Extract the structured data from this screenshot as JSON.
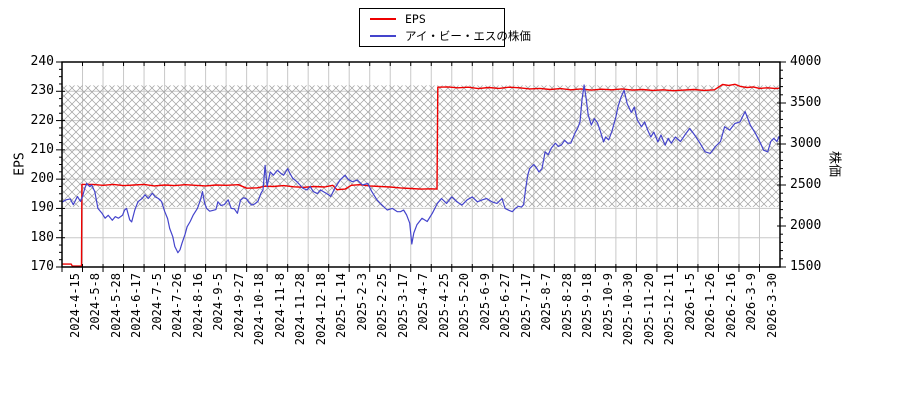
{
  "legend": {
    "entries": [
      {
        "label": "EPS",
        "color": "#ee0000"
      },
      {
        "label": "アイ・ビー・エスの株価",
        "color": "#4444cc"
      }
    ]
  },
  "chart_data": {
    "type": "line",
    "title": "",
    "grid": true,
    "legend_position": "top-center",
    "background_hatch_band": {
      "axis": "left",
      "from": 190.5,
      "to": 232,
      "style": "diagonal-crosshatch",
      "color": "#a0a0a0"
    },
    "grid_color": "#c8c8c8",
    "x_tick_labels": [
      "2024-4-15",
      "2024-5-8",
      "2024-5-28",
      "2024-6-17",
      "2024-7-5",
      "2024-7-26",
      "2024-8-16",
      "2024-9-5",
      "2024-9-27",
      "2024-10-18",
      "2024-11-8",
      "2024-11-28",
      "2024-12-18",
      "2025-1-14",
      "2025-2-3",
      "2025-2-25",
      "2025-3-17",
      "2025-4-7",
      "2025-4-25",
      "2025-5-20",
      "2025-6-9",
      "2025-6-27",
      "2025-7-17",
      "2025-8-7",
      "2025-8-28",
      "2025-9-18",
      "2025-10-9",
      "2025-10-30",
      "2025-11-20",
      "2025-12-11",
      "2026-1-5",
      "2026-1-26",
      "2026-2-16",
      "2026-3-9",
      "2026-3-30"
    ],
    "left_axis": {
      "label": "EPS",
      "min": 170,
      "max": 240,
      "tick_interval": 10,
      "minor_tick_interval": 2.5,
      "tick_labels": [
        "170",
        "180",
        "190",
        "200",
        "210",
        "220",
        "230",
        "240"
      ]
    },
    "right_axis": {
      "label": "株価",
      "min": 1500,
      "max": 4000,
      "tick_interval": 500,
      "minor_tick_interval": 100,
      "tick_labels": [
        "1500",
        "2000",
        "2500",
        "3000",
        "3500",
        "4000"
      ]
    },
    "series": [
      {
        "name": "EPS",
        "axis": "left",
        "color": "#ee0000",
        "width": 1.4,
        "points": [
          [
            0,
            171
          ],
          [
            0.45,
            171
          ],
          [
            0.5,
            170.3
          ],
          [
            0.95,
            170.3
          ],
          [
            0.97,
            198.2
          ],
          [
            1.5,
            198.2
          ],
          [
            2,
            197.9
          ],
          [
            2.5,
            198.2
          ],
          [
            3,
            197.8
          ],
          [
            3.5,
            198
          ],
          [
            4,
            198.2
          ],
          [
            4.5,
            197.7
          ],
          [
            5,
            198
          ],
          [
            5.5,
            197.8
          ],
          [
            6,
            198.1
          ],
          [
            6.5,
            197.9
          ],
          [
            7,
            197.7
          ],
          [
            7.5,
            198
          ],
          [
            8,
            197.9
          ],
          [
            8.6,
            198.1
          ],
          [
            9,
            196.9
          ],
          [
            9.5,
            197
          ],
          [
            9.9,
            197.6
          ],
          [
            10.3,
            197.5
          ],
          [
            10.8,
            197.8
          ],
          [
            11.3,
            197.4
          ],
          [
            11.8,
            197.2
          ],
          [
            12.3,
            197.5
          ],
          [
            12.8,
            197.3
          ],
          [
            13.2,
            197.9
          ],
          [
            13.4,
            196.4
          ],
          [
            13.8,
            196.6
          ],
          [
            14.1,
            197.9
          ],
          [
            14.5,
            198.1
          ],
          [
            15,
            197.7
          ],
          [
            15.5,
            197.5
          ],
          [
            16,
            197.3
          ],
          [
            16.5,
            197
          ],
          [
            17,
            196.8
          ],
          [
            17.5,
            196.6
          ],
          [
            18,
            196.7
          ],
          [
            18.28,
            196.6
          ],
          [
            18.32,
            231.4
          ],
          [
            18.8,
            231.5
          ],
          [
            19.3,
            231.2
          ],
          [
            19.8,
            231.4
          ],
          [
            20.3,
            230.9
          ],
          [
            20.8,
            231.3
          ],
          [
            21.3,
            231
          ],
          [
            21.8,
            231.4
          ],
          [
            22.3,
            231.2
          ],
          [
            22.8,
            230.8
          ],
          [
            23.3,
            231
          ],
          [
            23.8,
            230.6
          ],
          [
            24.3,
            230.9
          ],
          [
            24.8,
            230.5
          ],
          [
            25.3,
            230.8
          ],
          [
            25.8,
            230.4
          ],
          [
            26.3,
            230.7
          ],
          [
            26.8,
            230.5
          ],
          [
            27.3,
            230.8
          ],
          [
            27.8,
            230.4
          ],
          [
            28.3,
            230.6
          ],
          [
            28.8,
            230.3
          ],
          [
            29.3,
            230.5
          ],
          [
            29.8,
            230.2
          ],
          [
            30.3,
            230.4
          ],
          [
            30.8,
            230.6
          ],
          [
            31.3,
            230.3
          ],
          [
            31.8,
            230.5
          ],
          [
            32.2,
            232.3
          ],
          [
            32.5,
            232
          ],
          [
            32.8,
            232.4
          ],
          [
            33.1,
            231.6
          ],
          [
            33.4,
            231.3
          ],
          [
            33.7,
            231.5
          ],
          [
            34,
            231
          ],
          [
            34.4,
            231.2
          ],
          [
            34.8,
            230.9
          ],
          [
            35,
            231.1
          ]
        ]
      },
      {
        "name": "アイ・ビー・エスの株価",
        "axis": "right",
        "color": "#4444cc",
        "width": 1.2,
        "points": [
          [
            0,
            2290
          ],
          [
            0.2,
            2320
          ],
          [
            0.4,
            2330
          ],
          [
            0.55,
            2260
          ],
          [
            0.75,
            2360
          ],
          [
            0.9,
            2300
          ],
          [
            1,
            2360
          ],
          [
            1.1,
            2450
          ],
          [
            1.2,
            2520
          ],
          [
            1.35,
            2480
          ],
          [
            1.45,
            2500
          ],
          [
            1.6,
            2420
          ],
          [
            1.75,
            2215
          ],
          [
            1.95,
            2155
          ],
          [
            2.1,
            2095
          ],
          [
            2.25,
            2130
          ],
          [
            2.45,
            2070
          ],
          [
            2.6,
            2115
          ],
          [
            2.75,
            2095
          ],
          [
            2.95,
            2130
          ],
          [
            3.05,
            2195
          ],
          [
            3.15,
            2215
          ],
          [
            3.3,
            2075
          ],
          [
            3.4,
            2050
          ],
          [
            3.55,
            2195
          ],
          [
            3.7,
            2295
          ],
          [
            3.9,
            2335
          ],
          [
            4.05,
            2380
          ],
          [
            4.2,
            2335
          ],
          [
            4.4,
            2400
          ],
          [
            4.55,
            2355
          ],
          [
            4.7,
            2335
          ],
          [
            4.85,
            2300
          ],
          [
            5,
            2180
          ],
          [
            5.15,
            2090
          ],
          [
            5.25,
            1970
          ],
          [
            5.4,
            1870
          ],
          [
            5.5,
            1750
          ],
          [
            5.6,
            1700
          ],
          [
            5.65,
            1675
          ],
          [
            5.75,
            1710
          ],
          [
            5.85,
            1790
          ],
          [
            6,
            1900
          ],
          [
            6.1,
            1990
          ],
          [
            6.25,
            2055
          ],
          [
            6.4,
            2135
          ],
          [
            6.6,
            2215
          ],
          [
            6.75,
            2320
          ],
          [
            6.85,
            2420
          ],
          [
            6.95,
            2280
          ],
          [
            7.05,
            2215
          ],
          [
            7.2,
            2180
          ],
          [
            7.35,
            2190
          ],
          [
            7.5,
            2200
          ],
          [
            7.6,
            2295
          ],
          [
            7.75,
            2250
          ],
          [
            7.9,
            2260
          ],
          [
            8.1,
            2320
          ],
          [
            8.25,
            2215
          ],
          [
            8.4,
            2210
          ],
          [
            8.55,
            2155
          ],
          [
            8.7,
            2315
          ],
          [
            8.85,
            2345
          ],
          [
            9,
            2330
          ],
          [
            9.1,
            2290
          ],
          [
            9.25,
            2255
          ],
          [
            9.4,
            2270
          ],
          [
            9.55,
            2300
          ],
          [
            9.7,
            2400
          ],
          [
            9.8,
            2440
          ],
          [
            9.9,
            2740
          ],
          [
            10,
            2480
          ],
          [
            10.15,
            2660
          ],
          [
            10.3,
            2620
          ],
          [
            10.5,
            2680
          ],
          [
            10.65,
            2645
          ],
          [
            10.8,
            2620
          ],
          [
            11,
            2700
          ],
          [
            11.1,
            2645
          ],
          [
            11.25,
            2580
          ],
          [
            11.45,
            2540
          ],
          [
            11.6,
            2500
          ],
          [
            11.75,
            2460
          ],
          [
            11.95,
            2440
          ],
          [
            12.1,
            2480
          ],
          [
            12.25,
            2420
          ],
          [
            12.45,
            2395
          ],
          [
            12.6,
            2440
          ],
          [
            12.8,
            2410
          ],
          [
            13,
            2380
          ],
          [
            13.1,
            2360
          ],
          [
            13.3,
            2460
          ],
          [
            13.55,
            2560
          ],
          [
            13.8,
            2620
          ],
          [
            13.95,
            2570
          ],
          [
            14.15,
            2540
          ],
          [
            14.4,
            2560
          ],
          [
            14.65,
            2500
          ],
          [
            14.9,
            2520
          ],
          [
            15.1,
            2420
          ],
          [
            15.35,
            2320
          ],
          [
            15.6,
            2255
          ],
          [
            15.85,
            2195
          ],
          [
            16.1,
            2215
          ],
          [
            16.35,
            2175
          ],
          [
            16.5,
            2175
          ],
          [
            16.65,
            2195
          ],
          [
            16.8,
            2135
          ],
          [
            16.95,
            2035
          ],
          [
            17.05,
            1780
          ],
          [
            17.15,
            1915
          ],
          [
            17.3,
            2015
          ],
          [
            17.55,
            2095
          ],
          [
            17.8,
            2055
          ],
          [
            18.05,
            2155
          ],
          [
            18.3,
            2275
          ],
          [
            18.5,
            2335
          ],
          [
            18.75,
            2275
          ],
          [
            19,
            2355
          ],
          [
            19.25,
            2295
          ],
          [
            19.5,
            2255
          ],
          [
            19.75,
            2320
          ],
          [
            20,
            2355
          ],
          [
            20.25,
            2295
          ],
          [
            20.5,
            2320
          ],
          [
            20.7,
            2335
          ],
          [
            20.95,
            2295
          ],
          [
            21.2,
            2275
          ],
          [
            21.45,
            2335
          ],
          [
            21.6,
            2215
          ],
          [
            21.8,
            2190
          ],
          [
            21.95,
            2175
          ],
          [
            22.1,
            2215
          ],
          [
            22.25,
            2240
          ],
          [
            22.4,
            2230
          ],
          [
            22.5,
            2260
          ],
          [
            22.6,
            2450
          ],
          [
            22.7,
            2620
          ],
          [
            22.8,
            2700
          ],
          [
            23,
            2750
          ],
          [
            23.1,
            2720
          ],
          [
            23.25,
            2660
          ],
          [
            23.4,
            2700
          ],
          [
            23.55,
            2905
          ],
          [
            23.7,
            2870
          ],
          [
            23.85,
            2950
          ],
          [
            24.05,
            3010
          ],
          [
            24.2,
            2970
          ],
          [
            24.35,
            2990
          ],
          [
            24.5,
            3045
          ],
          [
            24.65,
            3010
          ],
          [
            24.8,
            3010
          ],
          [
            25,
            3130
          ],
          [
            25.15,
            3200
          ],
          [
            25.25,
            3270
          ],
          [
            25.35,
            3540
          ],
          [
            25.45,
            3720
          ],
          [
            25.55,
            3560
          ],
          [
            25.65,
            3355
          ],
          [
            25.8,
            3230
          ],
          [
            25.95,
            3310
          ],
          [
            26.1,
            3260
          ],
          [
            26.25,
            3150
          ],
          [
            26.4,
            3025
          ],
          [
            26.5,
            3085
          ],
          [
            26.65,
            3050
          ],
          [
            26.8,
            3150
          ],
          [
            27,
            3330
          ],
          [
            27.1,
            3450
          ],
          [
            27.25,
            3570
          ],
          [
            27.4,
            3655
          ],
          [
            27.55,
            3490
          ],
          [
            27.75,
            3385
          ],
          [
            27.9,
            3450
          ],
          [
            28.05,
            3290
          ],
          [
            28.25,
            3210
          ],
          [
            28.4,
            3270
          ],
          [
            28.55,
            3170
          ],
          [
            28.7,
            3085
          ],
          [
            28.85,
            3145
          ],
          [
            29.05,
            3025
          ],
          [
            29.2,
            3110
          ],
          [
            29.4,
            2985
          ],
          [
            29.55,
            3070
          ],
          [
            29.7,
            3010
          ],
          [
            29.9,
            3085
          ],
          [
            30.15,
            3030
          ],
          [
            30.35,
            3105
          ],
          [
            30.6,
            3190
          ],
          [
            30.85,
            3105
          ],
          [
            31.1,
            3010
          ],
          [
            31.35,
            2905
          ],
          [
            31.6,
            2885
          ],
          [
            31.85,
            2970
          ],
          [
            32.1,
            3030
          ],
          [
            32.3,
            3210
          ],
          [
            32.55,
            3170
          ],
          [
            32.8,
            3250
          ],
          [
            33.05,
            3270
          ],
          [
            33.3,
            3395
          ],
          [
            33.4,
            3330
          ],
          [
            33.55,
            3230
          ],
          [
            33.8,
            3130
          ],
          [
            34.05,
            3010
          ],
          [
            34.2,
            2925
          ],
          [
            34.4,
            2905
          ],
          [
            34.55,
            3030
          ],
          [
            34.7,
            3070
          ],
          [
            34.85,
            3030
          ],
          [
            34.95,
            3090
          ],
          [
            35,
            3060
          ]
        ]
      }
    ]
  }
}
